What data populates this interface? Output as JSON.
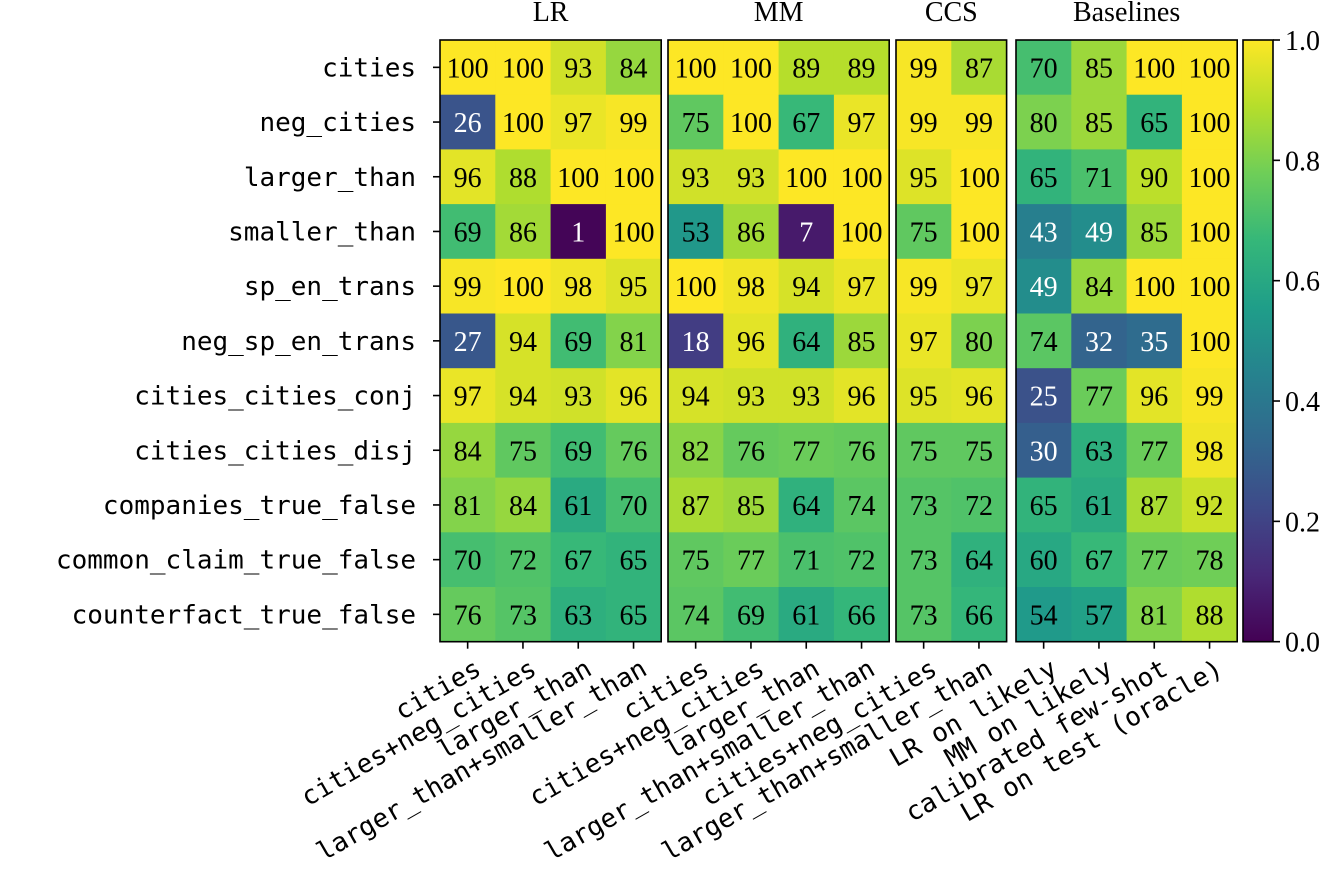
{
  "chart_data": {
    "type": "heatmap",
    "rows": [
      "cities",
      "neg_cities",
      "larger_than",
      "smaller_than",
      "sp_en_trans",
      "neg_sp_en_trans",
      "cities_cities_conj",
      "cities_cities_disj",
      "companies_true_false",
      "common_claim_true_false",
      "counterfact_true_false"
    ],
    "panels": [
      {
        "title": "LR",
        "columns": [
          "cities",
          "cities+neg_cities",
          "larger_than",
          "larger_than+smaller_than"
        ],
        "values": [
          [
            100,
            100,
            93,
            84
          ],
          [
            26,
            100,
            97,
            99
          ],
          [
            96,
            88,
            100,
            100
          ],
          [
            69,
            86,
            1,
            100
          ],
          [
            99,
            100,
            98,
            95
          ],
          [
            27,
            94,
            69,
            81
          ],
          [
            97,
            94,
            93,
            96
          ],
          [
            84,
            75,
            69,
            76
          ],
          [
            81,
            84,
            61,
            70
          ],
          [
            70,
            72,
            67,
            65
          ],
          [
            76,
            73,
            63,
            65
          ]
        ]
      },
      {
        "title": "MM",
        "columns": [
          "cities",
          "cities+neg_cities",
          "larger_than",
          "larger_than+smaller_than"
        ],
        "values": [
          [
            100,
            100,
            89,
            89
          ],
          [
            75,
            100,
            67,
            97
          ],
          [
            93,
            93,
            100,
            100
          ],
          [
            53,
            86,
            7,
            100
          ],
          [
            100,
            98,
            94,
            97
          ],
          [
            18,
            96,
            64,
            85
          ],
          [
            94,
            93,
            93,
            96
          ],
          [
            82,
            76,
            77,
            76
          ],
          [
            87,
            85,
            64,
            74
          ],
          [
            75,
            77,
            71,
            72
          ],
          [
            74,
            69,
            61,
            66
          ]
        ]
      },
      {
        "title": "CCS",
        "columns": [
          "cities+neg_cities",
          "larger_than+smaller_than"
        ],
        "values": [
          [
            99,
            87
          ],
          [
            99,
            99
          ],
          [
            95,
            100
          ],
          [
            75,
            100
          ],
          [
            99,
            97
          ],
          [
            97,
            80
          ],
          [
            95,
            96
          ],
          [
            75,
            75
          ],
          [
            73,
            72
          ],
          [
            73,
            64
          ],
          [
            73,
            66
          ]
        ]
      },
      {
        "title": "Baselines",
        "columns": [
          "LR on likely",
          "MM on likely",
          "calibrated few-shot",
          "LR on test (oracle)"
        ],
        "values": [
          [
            70,
            85,
            100,
            100
          ],
          [
            80,
            85,
            65,
            100
          ],
          [
            65,
            71,
            90,
            100
          ],
          [
            43,
            49,
            85,
            100
          ],
          [
            49,
            84,
            100,
            100
          ],
          [
            74,
            32,
            35,
            100
          ],
          [
            25,
            77,
            96,
            99
          ],
          [
            30,
            63,
            77,
            98
          ],
          [
            65,
            61,
            87,
            92
          ],
          [
            60,
            67,
            77,
            78
          ],
          [
            54,
            57,
            81,
            88
          ]
        ]
      }
    ],
    "colorbar": {
      "colormap": "viridis",
      "range": [
        0.0,
        1.0
      ],
      "ticks": [
        "0.0",
        "0.2",
        "0.4",
        "0.6",
        "0.8",
        "1.0"
      ]
    }
  }
}
